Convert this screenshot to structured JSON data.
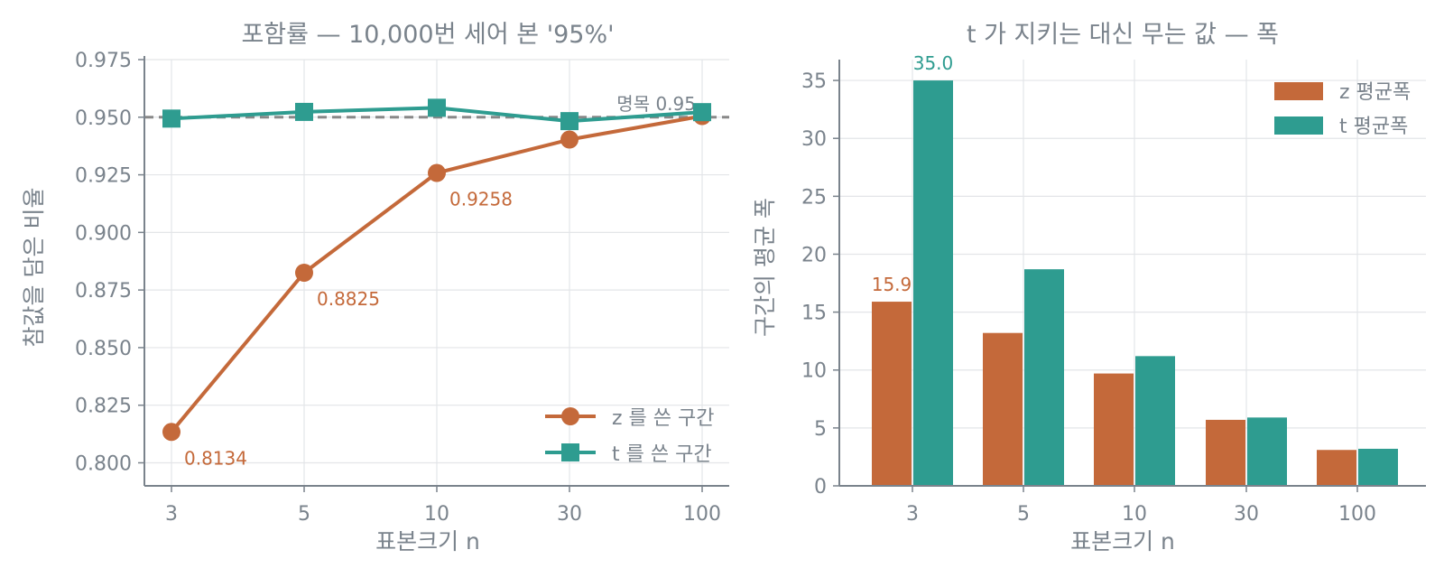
{
  "colors": {
    "z": "#c4693a",
    "t": "#2e9c90",
    "axis": "#7a838c",
    "grid": "#e3e5e8",
    "reference": "#888888"
  },
  "chart_data": [
    {
      "type": "line",
      "title": "포함률 — 10,000번 세어 본 '95%'",
      "xlabel": "표본크기 n",
      "ylabel": "참값을 담은 비율",
      "categories": [
        "3",
        "5",
        "10",
        "30",
        "100"
      ],
      "ylim": [
        0.79,
        0.975
      ],
      "yticks": [
        "0.800",
        "0.825",
        "0.850",
        "0.875",
        "0.900",
        "0.925",
        "0.950",
        "0.975"
      ],
      "grid": true,
      "legend_position": "lower-right",
      "reference_line": {
        "value": 0.95,
        "label": "명목 0.95"
      },
      "series": [
        {
          "name": "z 를 쓴 구간",
          "key": "z",
          "marker": "circle",
          "values": [
            0.8134,
            0.8825,
            0.9258,
            0.9403,
            0.9505
          ],
          "point_labels": [
            "0.8134",
            "0.8825",
            "0.9258",
            "",
            ""
          ]
        },
        {
          "name": "t 를 쓴 구간",
          "key": "t",
          "marker": "square",
          "values": [
            0.9494,
            0.9523,
            0.9541,
            0.9483,
            0.9522
          ],
          "point_labels": [
            "",
            "",
            "",
            "",
            ""
          ]
        }
      ]
    },
    {
      "type": "bar",
      "title": "t 가 지키는 대신 무는 값 — 폭",
      "xlabel": "표본크기 n",
      "ylabel": "구간의 평균 폭",
      "categories": [
        "3",
        "5",
        "10",
        "30",
        "100"
      ],
      "ylim": [
        0,
        36.8
      ],
      "yticks": [
        "0",
        "5",
        "10",
        "15",
        "20",
        "25",
        "30",
        "35"
      ],
      "grid": true,
      "legend_position": "top-right",
      "series": [
        {
          "name": "z 평균폭",
          "key": "z",
          "values": [
            15.9,
            13.2,
            9.7,
            5.7,
            3.1
          ],
          "bar_labels": [
            "15.9",
            "",
            "",
            "",
            ""
          ]
        },
        {
          "name": "t 평균폭",
          "key": "t",
          "values": [
            35.0,
            18.7,
            11.2,
            5.9,
            3.2
          ],
          "bar_labels": [
            "35.0",
            "",
            "",
            "",
            ""
          ]
        }
      ]
    }
  ]
}
